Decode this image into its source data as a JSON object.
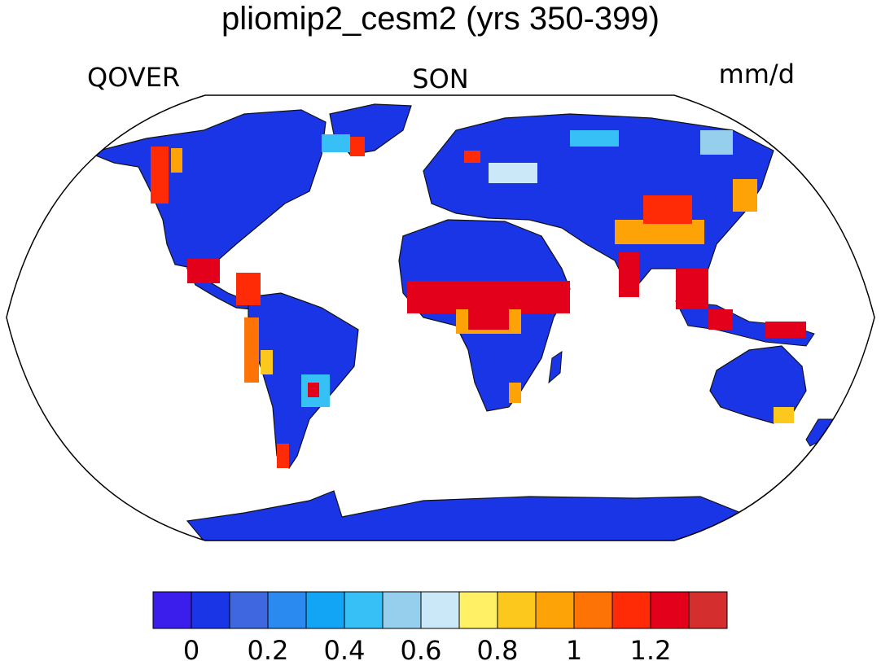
{
  "title": "pliomip2_cesm2 (yrs 350-399)",
  "variable": "QOVER",
  "season": "SON",
  "units": "mm/d",
  "map": {
    "projection": "Robinson",
    "land_fill_dominant": "#1a35e6",
    "ocean_fill": "#ffffff"
  },
  "colorbar": {
    "colors": [
      "#3c1eec",
      "#1a35e6",
      "#3f67e0",
      "#2a8af0",
      "#12a5f5",
      "#36c0f5",
      "#96cfee",
      "#cbe8f8",
      "#fff066",
      "#fdc81e",
      "#fda308",
      "#fd7305",
      "#fe2b06",
      "#e3001b",
      "#d42f2e"
    ],
    "tick_labels": [
      "0",
      "0.2",
      "0.4",
      "0.6",
      "0.8",
      "1",
      "1.2"
    ],
    "tick_values": [
      0,
      0.2,
      0.4,
      0.6,
      0.8,
      1.0,
      1.2
    ]
  }
}
